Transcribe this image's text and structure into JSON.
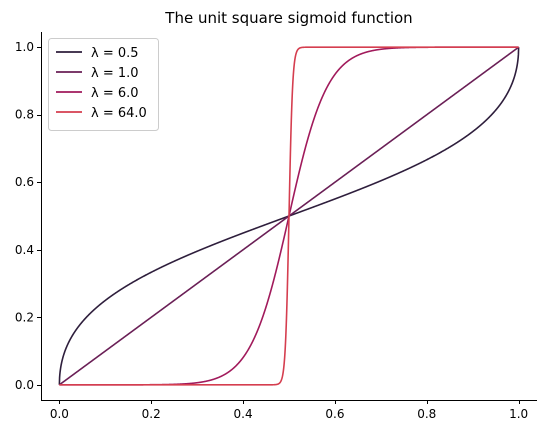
{
  "chart_data": {
    "type": "line",
    "title": "The unit square sigmoid function",
    "xlabel": "",
    "ylabel": "",
    "xlim": [
      -0.04,
      1.04
    ],
    "ylim": [
      -0.045,
      1.045
    ],
    "xticks": [
      0.0,
      0.2,
      0.4,
      0.6,
      0.8,
      1.0
    ],
    "xtick_labels": [
      "0.0",
      "0.2",
      "0.4",
      "0.6",
      "0.8",
      "1.0"
    ],
    "yticks": [
      0.0,
      0.2,
      0.4,
      0.6,
      0.8,
      1.0
    ],
    "ytick_labels": [
      "0.0",
      "0.2",
      "0.4",
      "0.6",
      "0.8",
      "1.0"
    ],
    "grid": false,
    "legend_position": "top-left",
    "function": "y = x^λ / (x^λ + (1 - x)^λ)",
    "x": [
      0.0,
      0.001,
      0.01,
      0.05,
      0.1,
      0.2,
      0.3,
      0.4,
      0.45,
      0.48,
      0.49,
      0.5,
      0.51,
      0.52,
      0.55,
      0.6,
      0.7,
      0.8,
      0.9,
      0.95,
      0.99,
      0.999,
      1.0
    ],
    "series": [
      {
        "name": "λ = 0.5",
        "lambda": 0.5,
        "color": "#2e1e3c",
        "values": [
          0.0,
          0.0307,
          0.0913,
          0.1866,
          0.25,
          0.3333,
          0.3956,
          0.4495,
          0.475,
          0.49,
          0.495,
          0.5,
          0.505,
          0.51,
          0.525,
          0.5505,
          0.6044,
          0.6667,
          0.75,
          0.8134,
          0.9087,
          0.9693,
          1.0
        ]
      },
      {
        "name": "λ = 1.0",
        "lambda": 1.0,
        "color": "#6a1f56",
        "values": [
          0.0,
          0.001,
          0.01,
          0.05,
          0.1,
          0.2,
          0.3,
          0.4,
          0.45,
          0.48,
          0.49,
          0.5,
          0.51,
          0.52,
          0.55,
          0.6,
          0.7,
          0.8,
          0.9,
          0.95,
          0.99,
          0.999,
          1.0
        ]
      },
      {
        "name": "λ = 6.0",
        "lambda": 6.0,
        "color": "#a11a5b",
        "values": [
          0.0,
          0.0,
          0.0,
          0.0,
          0.0,
          0.0002,
          0.0061,
          0.0806,
          0.2307,
          0.3806,
          0.4401,
          0.5,
          0.5599,
          0.6194,
          0.7693,
          0.9194,
          0.9939,
          0.9998,
          1.0,
          1.0,
          1.0,
          1.0,
          1.0
        ]
      },
      {
        "name": "λ = 64.0",
        "lambda": 64.0,
        "color": "#d53e4f",
        "values": [
          0.0,
          0.0,
          0.0,
          0.0,
          0.0,
          0.0,
          0.0,
          0.0,
          0.0,
          0.0059,
          0.0774,
          0.5,
          0.9226,
          0.9941,
          1.0,
          1.0,
          1.0,
          1.0,
          1.0,
          1.0,
          1.0,
          1.0,
          1.0
        ]
      }
    ]
  }
}
